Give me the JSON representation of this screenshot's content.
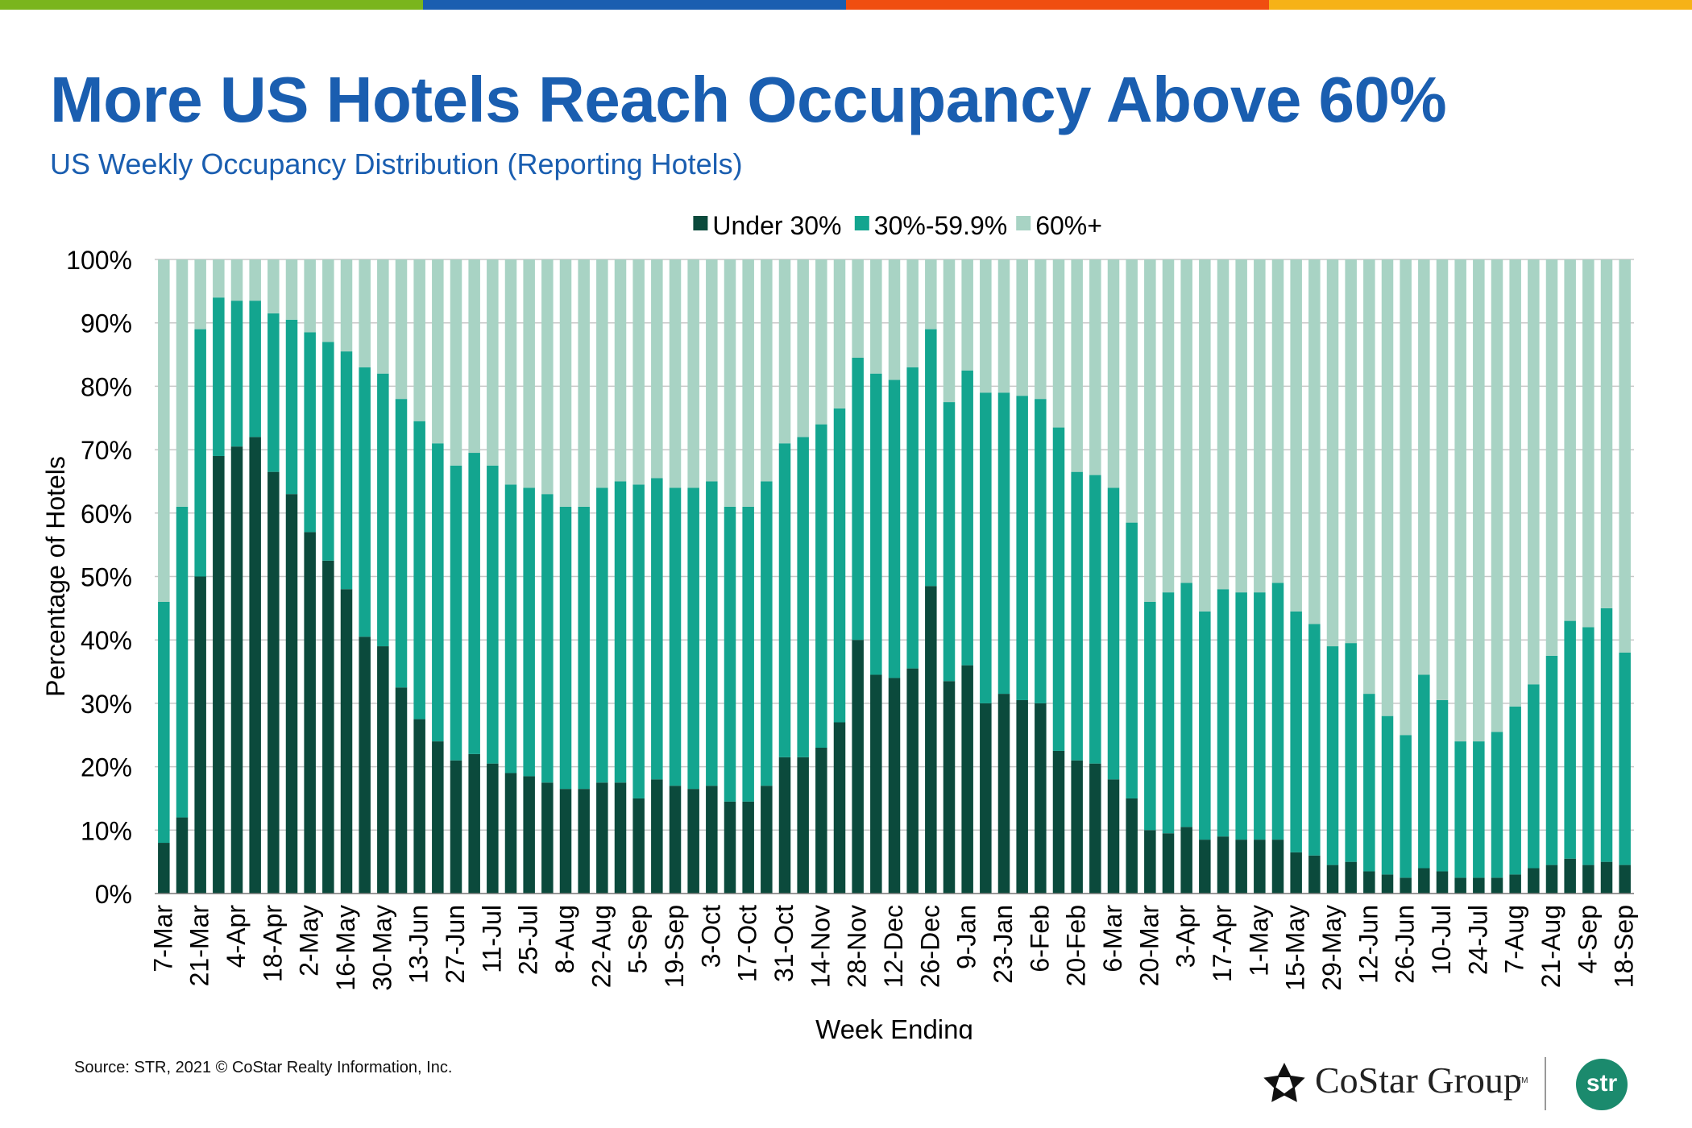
{
  "brand_colors": [
    "#7ab51d",
    "#1a5eb0",
    "#f04e10",
    "#f6b217"
  ],
  "title": "More US Hotels Reach Occupancy Above 60%",
  "subtitle": "US Weekly Occupancy Distribution (Reporting Hotels)",
  "source": "Source: STR, 2021 © CoStar Realty Information, Inc.",
  "logos": {
    "costar": "CoStar Group",
    "costar_tm": "TM",
    "str": "str"
  },
  "chart_data": {
    "type": "bar",
    "stacked": true,
    "xlabel": "Week Ending",
    "ylabel": "Percentage of Hotels",
    "ylim": [
      0,
      100
    ],
    "y_ticks": [
      "0%",
      "10%",
      "20%",
      "30%",
      "40%",
      "50%",
      "60%",
      "70%",
      "80%",
      "90%",
      "100%"
    ],
    "grid": true,
    "legend_position": "top-center",
    "x_tick_labels": [
      "7-Mar",
      "21-Mar",
      "4-Apr",
      "18-Apr",
      "2-May",
      "16-May",
      "30-May",
      "13-Jun",
      "27-Jun",
      "11-Jul",
      "25-Jul",
      "8-Aug",
      "22-Aug",
      "5-Sep",
      "19-Sep",
      "3-Oct",
      "17-Oct",
      "31-Oct",
      "14-Nov",
      "28-Nov",
      "12-Dec",
      "26-Dec",
      "9-Jan",
      "23-Jan",
      "6-Feb",
      "20-Feb",
      "6-Mar",
      "20-Mar",
      "3-Apr",
      "17-Apr",
      "1-May",
      "15-May",
      "29-May",
      "12-Jun",
      "26-Jun",
      "10-Jul",
      "24-Jul",
      "7-Aug",
      "21-Aug",
      "4-Sep",
      "18-Sep"
    ],
    "series": [
      {
        "name": "Under 30%",
        "color": "#0b4a3c",
        "values": [
          8,
          12,
          50,
          69,
          70.5,
          72,
          66.5,
          63,
          57,
          52.5,
          48,
          40.5,
          39,
          32.5,
          27.5,
          24,
          21,
          22,
          20.5,
          19,
          18.5,
          17.5,
          16.5,
          16.5,
          17.5,
          17.5,
          15,
          18,
          17,
          16.5,
          17,
          14.5,
          14.5,
          17,
          21.5,
          21.5,
          23,
          27,
          40,
          34.5,
          34,
          35.5,
          48.5,
          33.5,
          36,
          30,
          31.5,
          30.5,
          30,
          22.5,
          21,
          20.5,
          18,
          15,
          10,
          9.5,
          10.5,
          8.5,
          9,
          8.5,
          8.5,
          8.5,
          6.5,
          6,
          4.5,
          5,
          3.5,
          3,
          2.5,
          4,
          3.5,
          2.5,
          2.5,
          2.5,
          3,
          4,
          4.5,
          5.5,
          4.5,
          5,
          4.5
        ]
      },
      {
        "name": "30%-59.9%",
        "color": "#13a58f",
        "values": [
          38,
          49,
          39,
          25,
          23,
          21.5,
          25,
          27.5,
          31.5,
          34.5,
          37.5,
          42.5,
          43,
          45.5,
          47,
          47,
          46.5,
          47.5,
          47,
          45.5,
          45.5,
          45.5,
          44.5,
          44.5,
          46.5,
          47.5,
          49.5,
          47.5,
          47,
          47.5,
          48,
          46.5,
          46.5,
          48,
          49.5,
          50.5,
          51,
          49.5,
          44.5,
          47.5,
          47,
          47.5,
          40.5,
          44,
          46.5,
          49,
          47.5,
          48,
          48,
          51,
          45.5,
          45.5,
          46,
          43.5,
          36,
          38,
          38.5,
          36,
          39,
          39,
          39,
          40.5,
          38,
          36.5,
          34.5,
          34.5,
          28,
          25,
          22.5,
          30.5,
          27,
          21.5,
          21.5,
          23,
          26.5,
          29,
          33,
          37.5,
          37.5,
          40,
          33.5
        ]
      },
      {
        "name": "60%+",
        "color": "#a8d3c4",
        "values": [
          54,
          39,
          11,
          6,
          6.5,
          6.5,
          8.5,
          9.5,
          11.5,
          13,
          14.5,
          17,
          18,
          22,
          25.5,
          29,
          32.5,
          30.5,
          32.5,
          35.5,
          36,
          37,
          39,
          39,
          36,
          35,
          35.5,
          34.5,
          36,
          36,
          35,
          39,
          39,
          35,
          29,
          28,
          26,
          23.5,
          15.5,
          18,
          19,
          17,
          11,
          22.5,
          17.5,
          21,
          21,
          21.5,
          22,
          26.5,
          33.5,
          34,
          36,
          41.5,
          54,
          52.5,
          51,
          55.5,
          52,
          52.5,
          52.5,
          51,
          55.5,
          57.5,
          61,
          60.5,
          68.5,
          72,
          75,
          65.5,
          69.5,
          76,
          76,
          74.5,
          70.5,
          67,
          62.5,
          57,
          58,
          55,
          62
        ]
      }
    ]
  }
}
